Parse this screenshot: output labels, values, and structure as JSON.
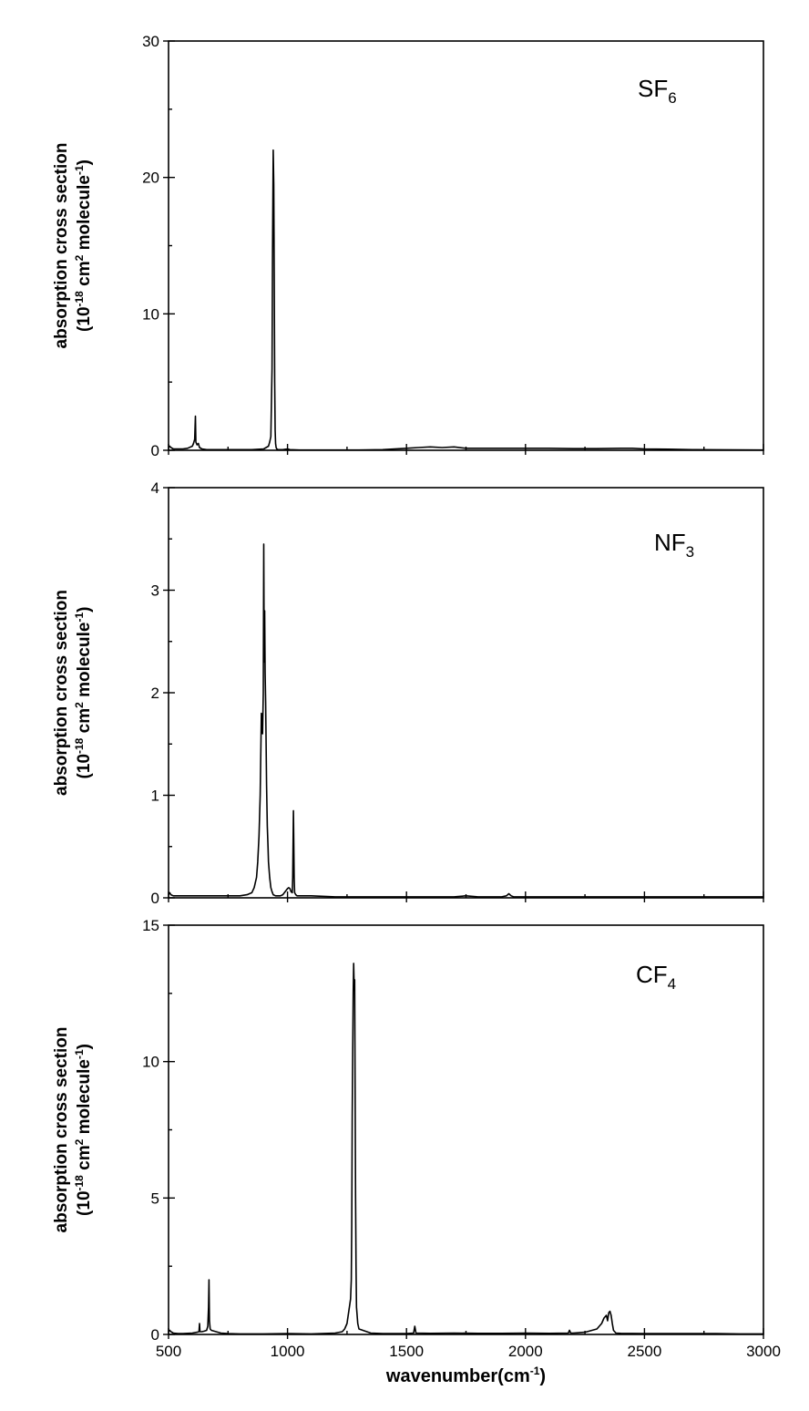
{
  "chart_data": [
    {
      "type": "line",
      "panel": "top",
      "molecule": {
        "base": "SF",
        "sub": "6"
      },
      "ylabel": {
        "line1": "absorption cross section",
        "line2_pre": "(10",
        "line2_exp": "-18",
        "line2_mid": " cm",
        "line2_exp2": "2",
        "line2_mid2": " molecule",
        "line2_exp3": "-1",
        "line2_post": ")"
      },
      "xlim": [
        500,
        3000
      ],
      "ylim": [
        0,
        30
      ],
      "yticks": [
        0,
        10,
        20,
        30
      ],
      "yticks_minor": [
        5,
        15,
        25
      ],
      "xticks": [
        500,
        1000,
        1500,
        2000,
        2500,
        3000
      ],
      "xticks_minor": [
        750,
        1250,
        1750,
        2250,
        2750
      ],
      "show_xtick_labels": false,
      "series": [
        {
          "x": [
            500,
            505,
            510,
            520,
            540,
            560,
            580,
            600,
            605,
            610,
            613,
            615,
            617,
            620,
            625,
            630,
            640,
            660,
            700,
            750,
            800,
            850,
            900,
            920,
            925,
            930,
            935,
            937,
            940,
            942,
            944,
            946,
            948,
            950,
            952,
            955,
            960,
            980,
            1000,
            1010,
            1050,
            1100,
            1200,
            1300,
            1400,
            1500,
            1550,
            1600,
            1650,
            1700,
            1750,
            1800,
            1900,
            2000,
            2100,
            2200,
            2300,
            2400,
            2450,
            2500,
            2600,
            2700,
            2800,
            2900,
            3000
          ],
          "y": [
            0.2,
            0.3,
            0.2,
            0.1,
            0.1,
            0.1,
            0.15,
            0.3,
            0.5,
            0.8,
            2.5,
            0.6,
            0.5,
            0.4,
            0.5,
            0.2,
            0.1,
            0.05,
            0.05,
            0.05,
            0.05,
            0.05,
            0.1,
            0.3,
            0.6,
            1.0,
            6.0,
            14.0,
            22.0,
            19.5,
            13.0,
            5.0,
            1.5,
            0.5,
            0.2,
            0.1,
            0.05,
            0.05,
            0.1,
            0.05,
            0.02,
            0.02,
            0.02,
            0.02,
            0.05,
            0.15,
            0.2,
            0.25,
            0.2,
            0.25,
            0.15,
            0.15,
            0.15,
            0.15,
            0.15,
            0.12,
            0.12,
            0.15,
            0.15,
            0.1,
            0.08,
            0.05,
            0.04,
            0.03,
            0.02
          ]
        }
      ]
    },
    {
      "type": "line",
      "panel": "middle",
      "molecule": {
        "base": "NF",
        "sub": "3"
      },
      "ylabel": {
        "line1": "absorption cross section",
        "line2_pre": "(10",
        "line2_exp": "-18",
        "line2_mid": " cm",
        "line2_exp2": "2",
        "line2_mid2": " molecule",
        "line2_exp3": "-1",
        "line2_post": ")"
      },
      "xlim": [
        500,
        3000
      ],
      "ylim": [
        0,
        4
      ],
      "yticks": [
        0,
        1,
        2,
        3,
        4
      ],
      "yticks_minor": [
        0.5,
        1.5,
        2.5,
        3.5
      ],
      "xticks": [
        500,
        1000,
        1500,
        2000,
        2500,
        3000
      ],
      "xticks_minor": [
        750,
        1250,
        1750,
        2250,
        2750
      ],
      "show_xtick_labels": false,
      "series": [
        {
          "x": [
            500,
            505,
            510,
            520,
            540,
            560,
            580,
            600,
            650,
            700,
            750,
            800,
            830,
            850,
            860,
            870,
            875,
            880,
            885,
            890,
            895,
            898,
            900,
            902,
            904,
            906,
            908,
            910,
            912,
            915,
            918,
            920,
            925,
            930,
            935,
            940,
            950,
            960,
            970,
            980,
            990,
            1000,
            1005,
            1010,
            1015,
            1020,
            1022,
            1025,
            1028,
            1030,
            1035,
            1040,
            1050,
            1100,
            1200,
            1300,
            1500,
            1700,
            1750,
            1800,
            1900,
            1920,
            1930,
            1940,
            1950,
            2000,
            2200,
            2500,
            2800,
            3000
          ],
          "y": [
            0.03,
            0.05,
            0.03,
            0.02,
            0.02,
            0.02,
            0.02,
            0.02,
            0.02,
            0.02,
            0.02,
            0.02,
            0.03,
            0.05,
            0.1,
            0.2,
            0.35,
            0.6,
            1.0,
            1.8,
            1.6,
            2.0,
            3.45,
            2.3,
            2.8,
            2.2,
            1.9,
            1.5,
            1.1,
            0.7,
            0.5,
            0.35,
            0.2,
            0.1,
            0.06,
            0.03,
            0.02,
            0.02,
            0.02,
            0.03,
            0.06,
            0.09,
            0.1,
            0.09,
            0.06,
            0.05,
            0.2,
            0.85,
            0.2,
            0.05,
            0.03,
            0.02,
            0.02,
            0.02,
            0.01,
            0.01,
            0.01,
            0.01,
            0.02,
            0.01,
            0.01,
            0.02,
            0.04,
            0.02,
            0.01,
            0.01,
            0.01,
            0.01,
            0.01,
            0.01
          ]
        }
      ]
    },
    {
      "type": "line",
      "panel": "bottom",
      "molecule": {
        "base": "CF",
        "sub": "4"
      },
      "ylabel": {
        "line1": "absorption cross section",
        "line2_pre": "(10",
        "line2_exp": "-18",
        "line2_mid": " cm",
        "line2_exp2": "2",
        "line2_mid2": " molecule",
        "line2_exp3": "-1",
        "line2_post": ")"
      },
      "xlabel": {
        "pre": "wavenumber(cm",
        "exp": "-1",
        "post": ")"
      },
      "xlim": [
        500,
        3000
      ],
      "ylim": [
        0,
        15
      ],
      "yticks": [
        0,
        5,
        10,
        15
      ],
      "yticks_minor": [
        2.5,
        7.5,
        12.5
      ],
      "xticks": [
        500,
        1000,
        1500,
        2000,
        2500,
        3000
      ],
      "xticks_minor": [
        750,
        1250,
        1750,
        2250,
        2750
      ],
      "show_xtick_labels": true,
      "series": [
        {
          "x": [
            500,
            505,
            510,
            520,
            540,
            560,
            580,
            600,
            620,
            628,
            630,
            632,
            640,
            650,
            660,
            665,
            668,
            670,
            672,
            675,
            680,
            700,
            720,
            750,
            800,
            900,
            1000,
            1100,
            1200,
            1230,
            1240,
            1250,
            1255,
            1260,
            1265,
            1268,
            1270,
            1272,
            1274,
            1276,
            1278,
            1280,
            1282,
            1284,
            1286,
            1288,
            1290,
            1295,
            1300,
            1350,
            1400,
            1500,
            1530,
            1535,
            1540,
            1600,
            1700,
            1800,
            1900,
            2000,
            2100,
            2180,
            2185,
            2190,
            2200,
            2250,
            2300,
            2320,
            2330,
            2340,
            2345,
            2350,
            2355,
            2360,
            2365,
            2370,
            2380,
            2400,
            2500,
            2600,
            2700,
            2800,
            2900,
            3000
          ],
          "y": [
            0.1,
            0.15,
            0.1,
            0.05,
            0.03,
            0.03,
            0.04,
            0.05,
            0.08,
            0.1,
            0.4,
            0.1,
            0.1,
            0.12,
            0.15,
            0.3,
            1.0,
            2.0,
            0.5,
            0.2,
            0.15,
            0.1,
            0.05,
            0.03,
            0.02,
            0.02,
            0.03,
            0.02,
            0.05,
            0.1,
            0.2,
            0.4,
            0.7,
            1.0,
            1.3,
            2.0,
            4.0,
            8.0,
            10.5,
            12.5,
            13.6,
            12.8,
            13.0,
            9.0,
            5.0,
            2.5,
            1.0,
            0.4,
            0.2,
            0.05,
            0.03,
            0.03,
            0.05,
            0.3,
            0.05,
            0.04,
            0.05,
            0.04,
            0.04,
            0.05,
            0.04,
            0.05,
            0.15,
            0.05,
            0.05,
            0.08,
            0.2,
            0.4,
            0.6,
            0.7,
            0.5,
            0.8,
            0.85,
            0.7,
            0.4,
            0.15,
            0.05,
            0.04,
            0.03,
            0.03,
            0.03,
            0.03,
            0.02,
            0.02
          ]
        }
      ]
    }
  ]
}
